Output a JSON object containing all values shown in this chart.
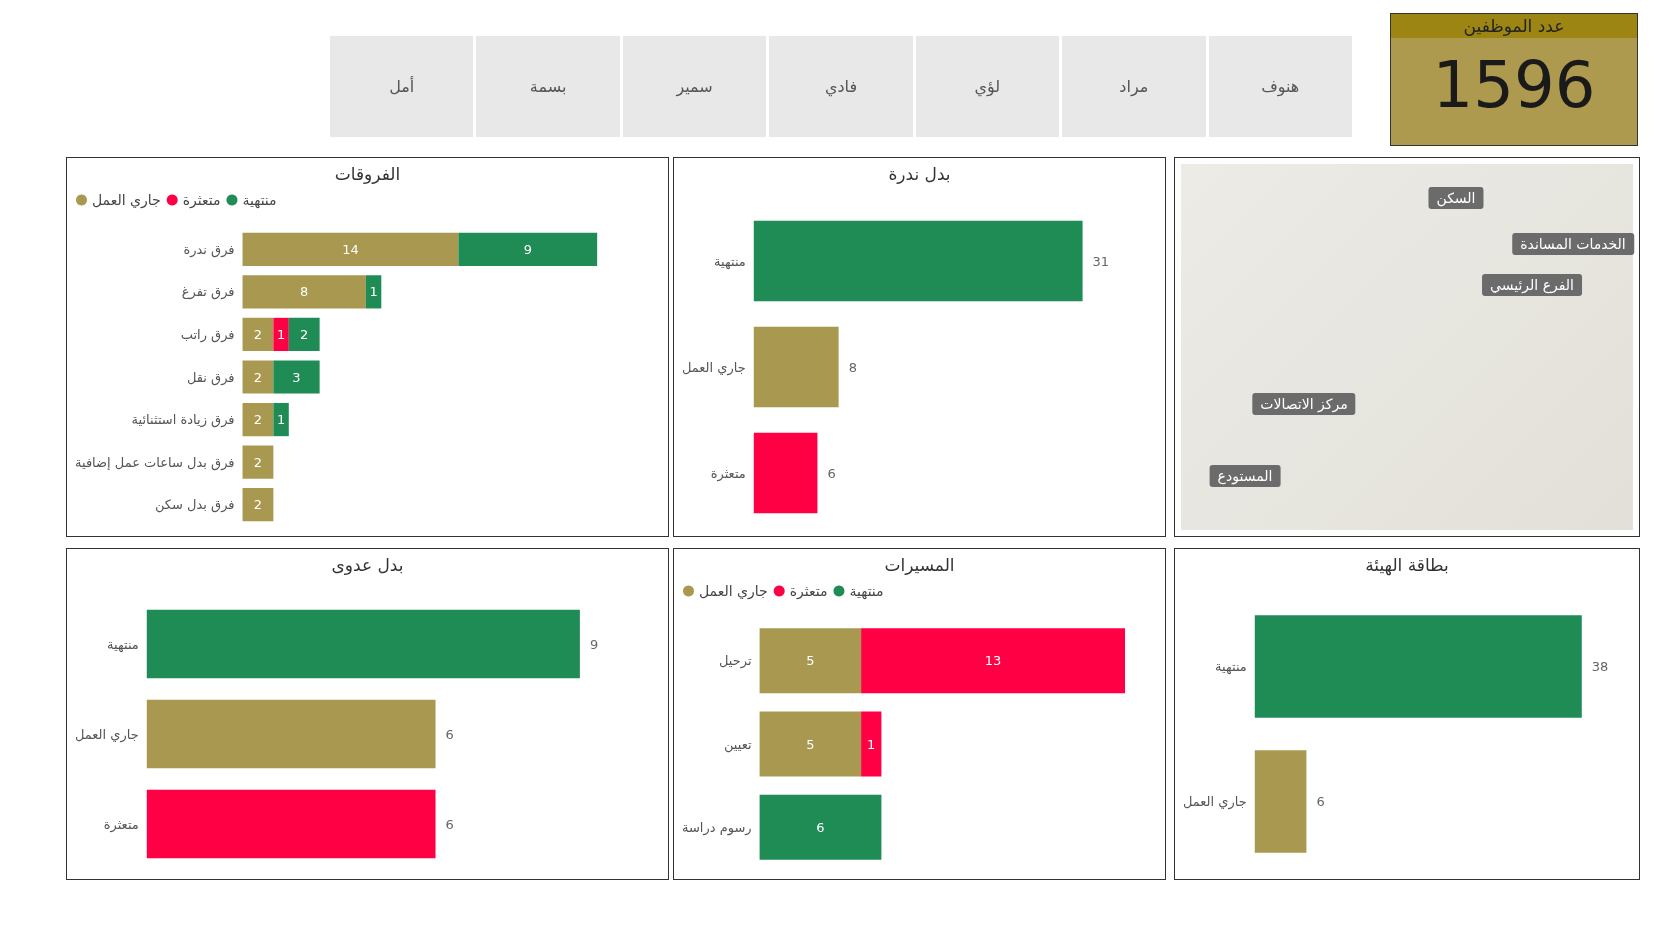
{
  "chart_data": [
    {
      "type": "other",
      "annotations": [
        "أمل",
        "بسمة",
        "سمير",
        "فادي",
        "لؤي",
        "مراد",
        "هنوف"
      ]
    },
    {
      "type": "other",
      "title": "عدد الموظفين",
      "annotations": [
        "1596"
      ]
    },
    {
      "type": "bar",
      "title": "الفروقات",
      "orientation": "horizontal",
      "stacked": true,
      "legend": "top left",
      "data_labels": true,
      "categories": [
        "فرق ندرة",
        "فرق تفرغ",
        "فرق راتب",
        "فرق نقل",
        "فرق زيادة استثنائية",
        "فرق بدل ساعات عمل إضافية",
        "فرق بدل سكن"
      ],
      "series": [
        {
          "name": "جاري العمل",
          "color": "#a99850",
          "values": [
            14,
            8,
            2,
            2,
            2,
            2,
            2
          ]
        },
        {
          "name": "متعثرة",
          "color": "#ff0044",
          "values": [
            null,
            null,
            1,
            null,
            null,
            null,
            null
          ]
        },
        {
          "name": "منتهية",
          "color": "#1f8b55",
          "values": [
            9,
            1,
            2,
            3,
            1,
            null,
            null
          ]
        }
      ]
    },
    {
      "type": "bar",
      "title": "بدل ندرة",
      "orientation": "horizontal",
      "data_labels": true,
      "categories": [
        "منتهية",
        "جاري العمل",
        "متعثرة"
      ],
      "values": [
        31,
        8,
        6
      ],
      "colors": [
        "#1f8b55",
        "#a99850",
        "#ff0044"
      ]
    },
    {
      "type": "other",
      "annotations": [
        "السكن",
        "الخدمات المساندة",
        "الفرع الرئيسي",
        "مركز الاتصالات",
        "المستودع"
      ]
    },
    {
      "type": "bar",
      "title": "بدل عدوى",
      "orientation": "horizontal",
      "data_labels": true,
      "categories": [
        "منتهية",
        "جاري العمل",
        "متعثرة"
      ],
      "values": [
        9,
        6,
        6
      ],
      "colors": [
        "#1f8b55",
        "#a99850",
        "#ff0044"
      ]
    },
    {
      "type": "bar",
      "title": "المسيرات",
      "orientation": "horizontal",
      "stacked": true,
      "legend": "top left",
      "data_labels": true,
      "categories": [
        "ترحيل",
        "تعيين",
        "رسوم دراسة"
      ],
      "series": [
        {
          "name": "جاري العمل",
          "color": "#a99850",
          "values": [
            5,
            5,
            null
          ]
        },
        {
          "name": "متعثرة",
          "color": "#ff0044",
          "values": [
            13,
            1,
            null
          ]
        },
        {
          "name": "منتهية",
          "color": "#1f8b55",
          "values": [
            null,
            null,
            6
          ]
        }
      ]
    },
    {
      "type": "bar",
      "title": "بطاقة الهيئة",
      "orientation": "horizontal",
      "data_labels": true,
      "categories": [
        "منتهية",
        "جاري العمل"
      ],
      "values": [
        38,
        6
      ],
      "colors": [
        "#1f8b55",
        "#a99850"
      ]
    }
  ]
}
